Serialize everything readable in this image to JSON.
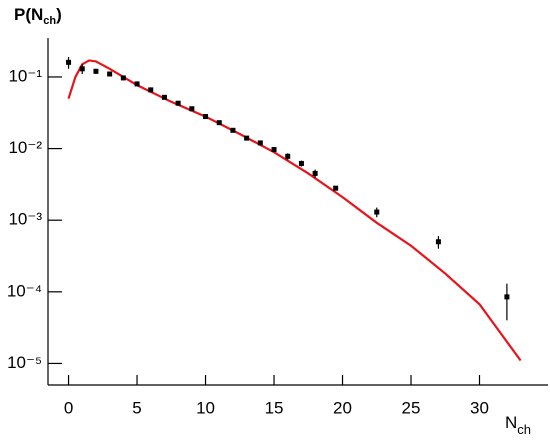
{
  "chart_data": {
    "type": "scatter",
    "ylabel": [
      "P(N",
      "ch",
      ")"
    ],
    "xlabel": [
      "N",
      "ch"
    ],
    "xlim": [
      -1.5,
      35
    ],
    "xticks": [
      0,
      5,
      10,
      15,
      20,
      25,
      30
    ],
    "ylim": [
      5e-06,
      0.35
    ],
    "log_y": true,
    "yticks": [
      {
        "value": 0.1,
        "label": "10⁻¹"
      },
      {
        "value": 0.01,
        "label": "10⁻²"
      },
      {
        "value": 0.001,
        "label": "10⁻³"
      },
      {
        "value": 0.0001,
        "label": "10⁻⁴"
      },
      {
        "value": 1e-05,
        "label": "10⁻⁵"
      }
    ],
    "points": {
      "color": "#000000",
      "x": [
        0,
        1,
        2,
        3,
        4,
        5,
        6,
        7,
        8,
        9,
        10,
        11,
        12,
        13,
        14,
        15,
        16,
        17,
        18,
        19.5,
        22.5,
        27,
        32
      ],
      "values": [
        0.16,
        0.13,
        0.12,
        0.11,
        0.097,
        0.08,
        0.066,
        0.052,
        0.043,
        0.036,
        0.028,
        0.023,
        0.018,
        0.014,
        0.012,
        0.0097,
        0.0078,
        0.0062,
        0.0045,
        0.0028,
        0.0013,
        0.0005,
        8.5e-05
      ],
      "errors": [
        0.03,
        0.02,
        0.01,
        0.008,
        0.005,
        0.004,
        0.003,
        0.002,
        0.002,
        0.0015,
        0.001,
        0.001,
        0.0008,
        0.0007,
        0.0008,
        0.0007,
        0.0008,
        0.0006,
        0.0006,
        0.0001,
        0.0002,
        0.0001,
        4.5e-05
      ]
    },
    "curve": {
      "type": "line",
      "color": "#e8141b",
      "x": [
        0,
        0.5,
        1,
        1.5,
        2,
        3,
        4,
        5,
        7.5,
        10,
        12.5,
        15,
        17.5,
        20,
        22.5,
        25,
        27.5,
        30,
        33
      ],
      "values": [
        0.05,
        0.1,
        0.15,
        0.17,
        0.165,
        0.13,
        0.1,
        0.077,
        0.045,
        0.028,
        0.016,
        0.0089,
        0.0045,
        0.0021,
        0.00092,
        0.00044,
        0.00018,
        6.7e-05,
        1.1e-05
      ]
    }
  }
}
